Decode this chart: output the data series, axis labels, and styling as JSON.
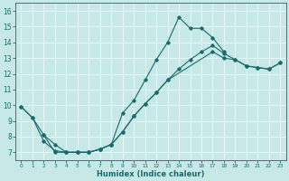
{
  "xlabel": "Humidex (Indice chaleur)",
  "xlim": [
    -0.5,
    23.5
  ],
  "ylim": [
    6.5,
    16.5
  ],
  "yticks": [
    7,
    8,
    9,
    10,
    11,
    12,
    13,
    14,
    15,
    16
  ],
  "xticks": [
    0,
    1,
    2,
    3,
    4,
    5,
    6,
    7,
    8,
    9,
    10,
    11,
    12,
    13,
    14,
    15,
    16,
    17,
    18,
    19,
    20,
    21,
    22,
    23
  ],
  "bg_color": "#c6e8e6",
  "line_color": "#1a6b6b",
  "grid_color": "#e8f8f8",
  "line1_x": [
    0,
    1,
    2,
    3,
    4,
    5,
    6,
    7,
    8,
    9,
    10,
    11,
    12,
    13,
    14,
    15,
    16,
    17,
    18
  ],
  "line1_y": [
    9.9,
    9.2,
    7.7,
    7.1,
    7.0,
    7.0,
    7.0,
    7.2,
    7.5,
    9.5,
    10.3,
    11.6,
    12.9,
    14.0,
    15.6,
    14.9,
    14.9,
    14.3,
    13.4
  ],
  "line2_x": [
    0,
    1,
    2,
    3,
    4,
    5,
    6,
    7,
    8,
    9,
    10,
    11,
    12,
    13,
    17,
    18,
    19,
    20,
    21,
    22,
    23
  ],
  "line2_y": [
    9.9,
    9.2,
    8.1,
    7.0,
    7.0,
    7.0,
    7.0,
    7.2,
    7.5,
    8.3,
    9.3,
    10.1,
    10.8,
    11.6,
    13.4,
    13.0,
    12.9,
    12.5,
    12.4,
    12.3,
    12.7
  ],
  "line3_x": [
    2,
    3,
    4,
    5,
    6,
    7,
    8,
    9,
    10,
    11,
    12,
    13,
    14,
    15,
    16,
    17,
    18,
    19,
    20,
    21,
    22,
    23
  ],
  "line3_y": [
    8.1,
    7.5,
    7.0,
    7.0,
    7.0,
    7.2,
    7.5,
    8.3,
    9.3,
    10.1,
    10.8,
    11.6,
    12.3,
    12.9,
    13.4,
    13.8,
    13.3,
    12.9,
    12.5,
    12.4,
    12.3,
    12.7
  ]
}
